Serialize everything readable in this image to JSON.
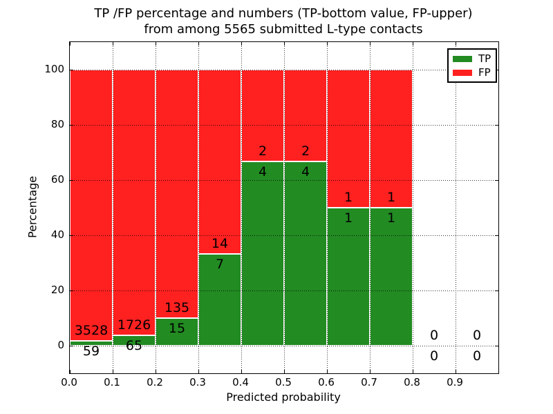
{
  "title": {
    "line1": "TP /FP percentage and numbers (TP-bottom value, FP-upper)",
    "line2": "from among 5565 submitted L-type contacts"
  },
  "axes": {
    "xlabel": "Predicted probability",
    "ylabel": "Percentage",
    "xlim": [
      0.0,
      1.0
    ],
    "ylim": [
      -10,
      110
    ],
    "xticks": {
      "values": [
        0.0,
        0.1,
        0.2,
        0.3,
        0.4,
        0.5,
        0.6,
        0.7,
        0.8,
        0.9
      ],
      "labels": [
        "0.0",
        "0.1",
        "0.2",
        "0.3",
        "0.4",
        "0.5",
        "0.6",
        "0.7",
        "0.8",
        "0.9"
      ]
    },
    "yticks": {
      "values": [
        0,
        20,
        40,
        60,
        80,
        100
      ],
      "labels": [
        "0",
        "20",
        "40",
        "60",
        "80",
        "100"
      ]
    },
    "grid": "dotted"
  },
  "legend": {
    "position": "upper right",
    "items": [
      {
        "label": "TP",
        "color": "#228b22"
      },
      {
        "label": "FP",
        "color": "#ff2020"
      }
    ]
  },
  "colors": {
    "tp": "#228b22",
    "fp": "#ff2020",
    "grid": "#000000",
    "background": "#ffffff",
    "bar_edge": "#ffffff"
  },
  "chart_data": {
    "type": "bar",
    "stacked": true,
    "normalized": "each bin scaled to 100%",
    "title": "TP /FP percentage and numbers (TP-bottom value, FP-upper) from among 5565 submitted L-type contacts",
    "xlabel": "Predicted probability",
    "ylabel": "Percentage",
    "xlim": [
      0.0,
      1.0
    ],
    "ylim": [
      -10,
      110
    ],
    "grid": true,
    "legend_position": "upper right",
    "total_submitted": 5565,
    "bin_edges": [
      0.0,
      0.1,
      0.2,
      0.3,
      0.4,
      0.5,
      0.6,
      0.7,
      0.8,
      0.9,
      1.0
    ],
    "categories": [
      "0.0-0.1",
      "0.1-0.2",
      "0.2-0.3",
      "0.3-0.4",
      "0.4-0.5",
      "0.5-0.6",
      "0.6-0.7",
      "0.7-0.8",
      "0.8-0.9",
      "0.9-1.0"
    ],
    "series": [
      {
        "name": "TP",
        "color": "#228b22",
        "counts": [
          59,
          65,
          15,
          7,
          4,
          4,
          1,
          1,
          0,
          0
        ],
        "pct": [
          1.65,
          3.63,
          10.0,
          33.33,
          66.67,
          66.67,
          50.0,
          50.0,
          null,
          null
        ]
      },
      {
        "name": "FP",
        "color": "#ff2020",
        "counts": [
          3528,
          1726,
          135,
          14,
          2,
          2,
          1,
          1,
          0,
          0
        ],
        "pct": [
          98.35,
          96.37,
          90.0,
          66.67,
          33.33,
          33.33,
          50.0,
          50.0,
          null,
          null
        ]
      }
    ]
  }
}
